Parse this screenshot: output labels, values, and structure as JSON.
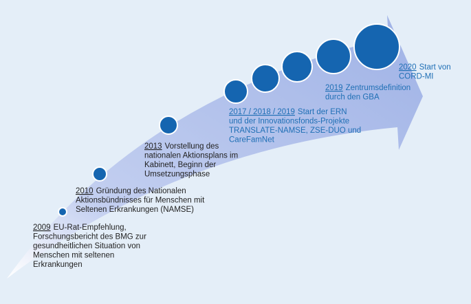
{
  "events": [
    {
      "year": "2009",
      "lines": [
        "EU-Rat-Empfehlung,",
        "Forschungsbericht des BMG zur",
        "gesundheitlichen Situation von",
        "Menschen mit seltenen",
        "Erkrankungen"
      ]
    },
    {
      "year": "2010",
      "lines": [
        "Gründung des Nationalen",
        "Aktionsbündnisses für Menschen mit",
        "Seltenen Erkrankungen (NAMSE)"
      ]
    },
    {
      "year": "2013",
      "lines": [
        "Vorstellung des",
        "nationalen Aktionsplans im",
        "Kabinett, Beginn der",
        "Umsetzungsphase"
      ]
    },
    {
      "year": "2017 / 2018 / 2019",
      "lines": [
        "Start der ERN",
        "und der Innovationsfonds-Projekte",
        "TRANSLATE-NAMSE, ZSE-DUO und",
        "CareFamNet"
      ]
    },
    {
      "year": "2019",
      "lines": [
        "Zentrumsdefinition",
        "durch den GBA"
      ]
    },
    {
      "year": "2020",
      "lines": [
        "Start von",
        "CORD-MI"
      ]
    }
  ]
}
